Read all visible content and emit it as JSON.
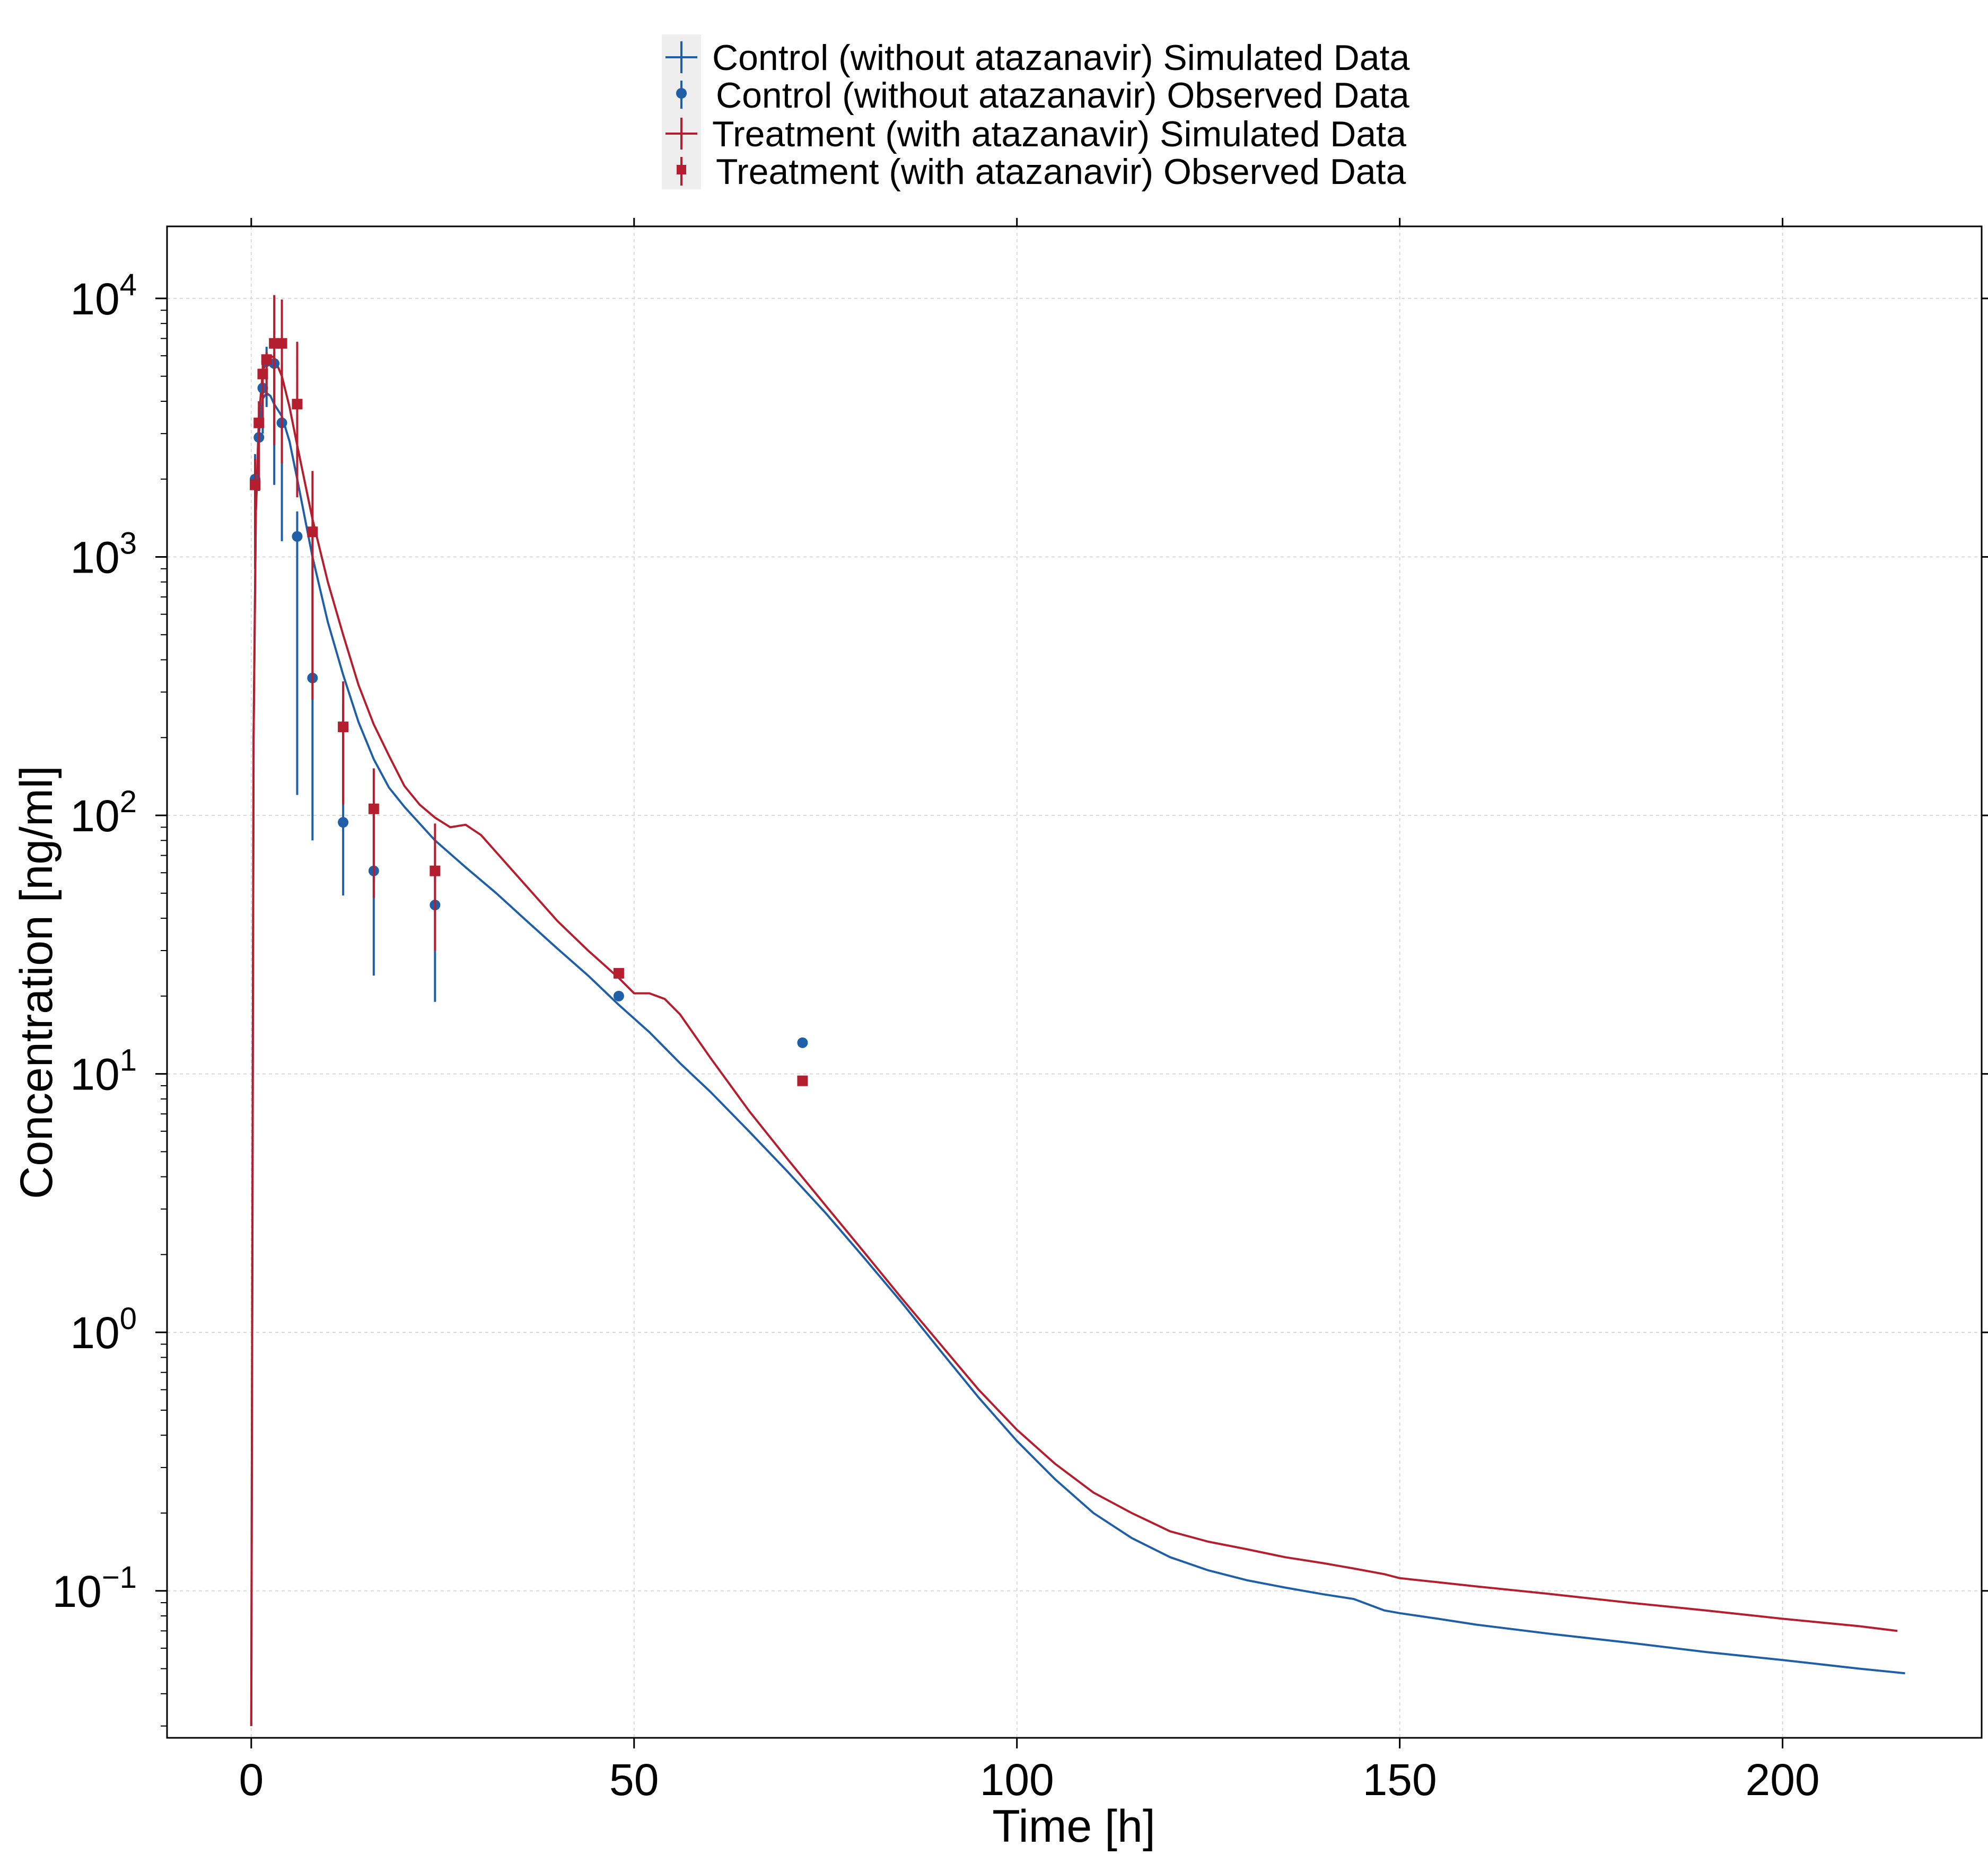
{
  "colors": {
    "control": "#1f5fa8",
    "treatment": "#b51e2e",
    "legend_bg": "#eeeeee"
  },
  "chart_data": {
    "type": "line",
    "title": "",
    "xlabel": "Time [h]",
    "ylabel": "Concentration [ng/ml]",
    "xlim": [
      -11,
      226
    ],
    "ylim": [
      0.027,
      19000
    ],
    "yscale": "log",
    "grid": true,
    "legend_position": "top-center",
    "x_ticks": [
      {
        "value": 0,
        "label": "0"
      },
      {
        "value": 50,
        "label": "50"
      },
      {
        "value": 100,
        "label": "100"
      },
      {
        "value": 150,
        "label": "150"
      },
      {
        "value": 200,
        "label": "200"
      }
    ],
    "y_ticks": [
      {
        "value": 0.1,
        "base": "10",
        "exp": "−1"
      },
      {
        "value": 1,
        "base": "10",
        "exp": "0"
      },
      {
        "value": 10,
        "base": "10",
        "exp": "1"
      },
      {
        "value": 100,
        "base": "10",
        "exp": "2"
      },
      {
        "value": 1000,
        "base": "10",
        "exp": "3"
      },
      {
        "value": 10000,
        "base": "10",
        "exp": "4"
      }
    ],
    "legend": [
      {
        "label": "Control (without atazanavir) Simulated Data",
        "series": "control_sim",
        "marker": "line"
      },
      {
        "label": "Control (without atazanavir) Observed Data",
        "series": "control_obs",
        "marker": "circle"
      },
      {
        "label": "Treatment (with atazanavir) Simulated Data",
        "series": "treatment_sim",
        "marker": "line"
      },
      {
        "label": "Treatment (with atazanavir) Observed Data",
        "series": "treatment_obs",
        "marker": "square"
      }
    ],
    "series": [
      {
        "key": "control_sim",
        "name": "Control (without atazanavir) Simulated Data",
        "kind": "line",
        "color": "#1f5fa8",
        "x": [
          0,
          0.3,
          0.6,
          1,
          1.5,
          2,
          2.5,
          3,
          4,
          5,
          6,
          8,
          10,
          12,
          14,
          16,
          18,
          20,
          24,
          28,
          32,
          36,
          40,
          44,
          48,
          52,
          56,
          60,
          65,
          70,
          75,
          80,
          85,
          90,
          95,
          100,
          105,
          110,
          115,
          120,
          125,
          130,
          135,
          140,
          144,
          148,
          150,
          155,
          160,
          170,
          180,
          190,
          200,
          210,
          216
        ],
        "y": [
          0.03,
          200,
          1500,
          3000,
          4100,
          4300,
          4200,
          3900,
          3500,
          2800,
          2000,
          1000,
          560,
          350,
          230,
          165,
          128,
          108,
          80,
          63,
          50,
          39,
          30.5,
          24,
          18.5,
          14.5,
          11,
          8.5,
          6,
          4.2,
          2.9,
          1.95,
          1.3,
          0.85,
          0.56,
          0.38,
          0.27,
          0.2,
          0.16,
          0.135,
          0.12,
          0.11,
          0.103,
          0.097,
          0.093,
          0.084,
          0.082,
          0.078,
          0.074,
          0.068,
          0.063,
          0.058,
          0.054,
          0.05,
          0.048
        ]
      },
      {
        "key": "treatment_sim",
        "name": "Treatment (with atazanavir) Simulated Data",
        "kind": "line",
        "color": "#b51e2e",
        "x": [
          0,
          0.3,
          0.6,
          1,
          1.5,
          2,
          2.5,
          3,
          4,
          5,
          6,
          8,
          10,
          12,
          14,
          16,
          18,
          20,
          22,
          24,
          26,
          28,
          30,
          32,
          36,
          40,
          44,
          48,
          50,
          52,
          54,
          56,
          60,
          65,
          70,
          75,
          80,
          85,
          90,
          95,
          100,
          105,
          110,
          115,
          120,
          125,
          130,
          135,
          140,
          144,
          148,
          150,
          155,
          160,
          170,
          180,
          190,
          200,
          210,
          215
        ],
        "y": [
          0.03,
          200,
          1500,
          3500,
          5200,
          5800,
          6000,
          5900,
          5000,
          3800,
          2700,
          1400,
          800,
          500,
          320,
          225,
          170,
          130,
          110,
          98,
          90,
          92,
          84,
          72,
          53,
          39,
          30,
          23.5,
          20.5,
          20.5,
          19.5,
          17,
          11.5,
          7.2,
          4.7,
          3.1,
          2.05,
          1.35,
          0.9,
          0.6,
          0.42,
          0.31,
          0.24,
          0.2,
          0.17,
          0.155,
          0.145,
          0.135,
          0.128,
          0.122,
          0.116,
          0.112,
          0.108,
          0.104,
          0.097,
          0.09,
          0.084,
          0.078,
          0.073,
          0.07
        ]
      },
      {
        "key": "control_obs",
        "name": "Control (without atazanavir) Observed Data",
        "kind": "points",
        "marker": "circle",
        "color": "#1f5fa8",
        "points": [
          {
            "x": 0.5,
            "y": 2000,
            "lo": 1200,
            "hi": 2500
          },
          {
            "x": 1,
            "y": 2900,
            "lo": 1800,
            "hi": 3800
          },
          {
            "x": 1.5,
            "y": 4500,
            "lo": 3000,
            "hi": 5200
          },
          {
            "x": 2,
            "y": 5700,
            "lo": 3800,
            "hi": 6500
          },
          {
            "x": 3,
            "y": 5600,
            "lo": 1900,
            "hi": 6200
          },
          {
            "x": 4,
            "y": 3300,
            "lo": 1150,
            "hi": 5600
          },
          {
            "x": 6,
            "y": 1200,
            "lo": 120,
            "hi": 1500
          },
          {
            "x": 8,
            "y": 340,
            "lo": 80,
            "hi": 1200
          },
          {
            "x": 12,
            "y": 94,
            "lo": 49,
            "hi": 270
          },
          {
            "x": 16,
            "y": 61,
            "lo": 24,
            "hi": 110
          },
          {
            "x": 24,
            "y": 45,
            "lo": 19,
            "hi": 75
          },
          {
            "x": 48,
            "y": 20
          },
          {
            "x": 72,
            "y": 13.2
          }
        ]
      },
      {
        "key": "treatment_obs",
        "name": "Treatment (with atazanavir) Observed Data",
        "kind": "points",
        "marker": "square",
        "color": "#b51e2e",
        "points": [
          {
            "x": 0.5,
            "y": 1900,
            "lo": 900,
            "hi": 2400
          },
          {
            "x": 1,
            "y": 3300,
            "lo": 1800,
            "hi": 4000
          },
          {
            "x": 1.5,
            "y": 5100,
            "lo": 3300,
            "hi": 5600
          },
          {
            "x": 2,
            "y": 5800,
            "lo": 4200,
            "hi": 6200
          },
          {
            "x": 3,
            "y": 6700,
            "lo": 2700,
            "hi": 10300
          },
          {
            "x": 4,
            "y": 6700,
            "lo": 2300,
            "hi": 9900
          },
          {
            "x": 6,
            "y": 3900,
            "lo": 1700,
            "hi": 6800
          },
          {
            "x": 8,
            "y": 1250,
            "lo": 280,
            "hi": 2150
          },
          {
            "x": 12,
            "y": 220,
            "lo": 110,
            "hi": 330
          },
          {
            "x": 16,
            "y": 106,
            "lo": 48,
            "hi": 152
          },
          {
            "x": 24,
            "y": 61,
            "lo": 30,
            "hi": 93
          },
          {
            "x": 48,
            "y": 24.5
          },
          {
            "x": 72,
            "y": 9.4
          }
        ]
      }
    ]
  }
}
